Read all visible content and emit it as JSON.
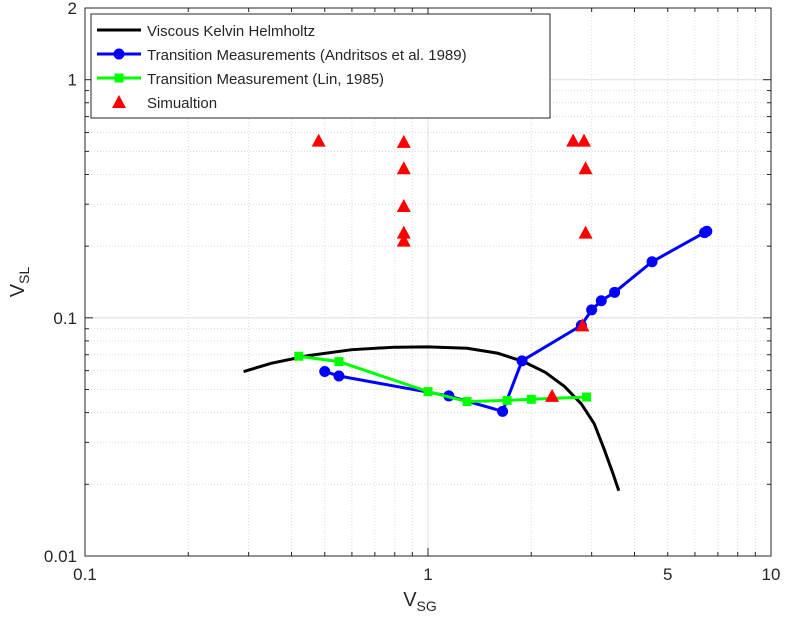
{
  "chart_data": {
    "type": "line",
    "xscale": "log",
    "yscale": "log",
    "xlim": [
      0.1,
      10
    ],
    "ylim": [
      0.01,
      2
    ],
    "grid": true,
    "xlabel": {
      "base": "V",
      "sub": "SG"
    },
    "ylabel": {
      "base": "V",
      "sub": "SL"
    },
    "x_ticks": [
      0.1,
      1,
      5,
      10
    ],
    "x_tick_labels": [
      "0.1",
      "1",
      "5",
      "10"
    ],
    "y_ticks": [
      0.01,
      0.1,
      1,
      2
    ],
    "y_tick_labels": [
      "0.01",
      "0.1",
      "1",
      "2"
    ],
    "legend_position": "top-left",
    "series": [
      {
        "name": "Viscous Kelvin Helmholtz",
        "kind": "line",
        "color": "#000000",
        "points": [
          [
            0.29,
            0.0595
          ],
          [
            0.35,
            0.0645
          ],
          [
            0.45,
            0.0695
          ],
          [
            0.6,
            0.0735
          ],
          [
            0.8,
            0.0753
          ],
          [
            1.0,
            0.0755
          ],
          [
            1.3,
            0.0745
          ],
          [
            1.6,
            0.071
          ],
          [
            1.9,
            0.0655
          ],
          [
            2.2,
            0.059
          ],
          [
            2.5,
            0.0515
          ],
          [
            2.8,
            0.0435
          ],
          [
            3.05,
            0.036
          ],
          [
            3.25,
            0.0285
          ],
          [
            3.45,
            0.0225
          ],
          [
            3.6,
            0.0188
          ]
        ]
      },
      {
        "name": "Transition Measurements (Andritsos et al. 1989)",
        "kind": "line-marker",
        "marker": "circle",
        "color": "#0000ff",
        "points": [
          [
            0.5,
            0.0595
          ],
          [
            0.55,
            0.057
          ],
          [
            1.15,
            0.047
          ],
          [
            1.65,
            0.0405
          ],
          [
            1.88,
            0.066
          ],
          [
            2.8,
            0.093
          ],
          [
            3.0,
            0.108
          ],
          [
            3.2,
            0.118
          ],
          [
            3.5,
            0.128
          ],
          [
            4.5,
            0.172
          ],
          [
            6.4,
            0.228
          ],
          [
            6.5,
            0.231
          ]
        ]
      },
      {
        "name": "Transition Measurement (Lin, 1985)",
        "kind": "line-marker",
        "marker": "square",
        "color": "#00ff00",
        "points": [
          [
            0.42,
            0.069
          ],
          [
            0.55,
            0.0655
          ],
          [
            1.0,
            0.049
          ],
          [
            1.3,
            0.0445
          ],
          [
            1.7,
            0.045
          ],
          [
            2.0,
            0.0455
          ],
          [
            2.9,
            0.0465
          ]
        ]
      },
      {
        "name": "Simualtion",
        "kind": "scatter",
        "marker": "triangle",
        "color": "#ff0000",
        "points": [
          [
            0.48,
            0.555
          ],
          [
            0.85,
            0.548
          ],
          [
            0.85,
            0.425
          ],
          [
            0.85,
            0.295
          ],
          [
            0.85,
            0.228
          ],
          [
            0.85,
            0.211
          ],
          [
            2.65,
            0.555
          ],
          [
            2.85,
            0.555
          ],
          [
            2.88,
            0.425
          ],
          [
            2.88,
            0.228
          ],
          [
            2.82,
            0.093
          ],
          [
            2.3,
            0.047
          ]
        ]
      }
    ]
  }
}
